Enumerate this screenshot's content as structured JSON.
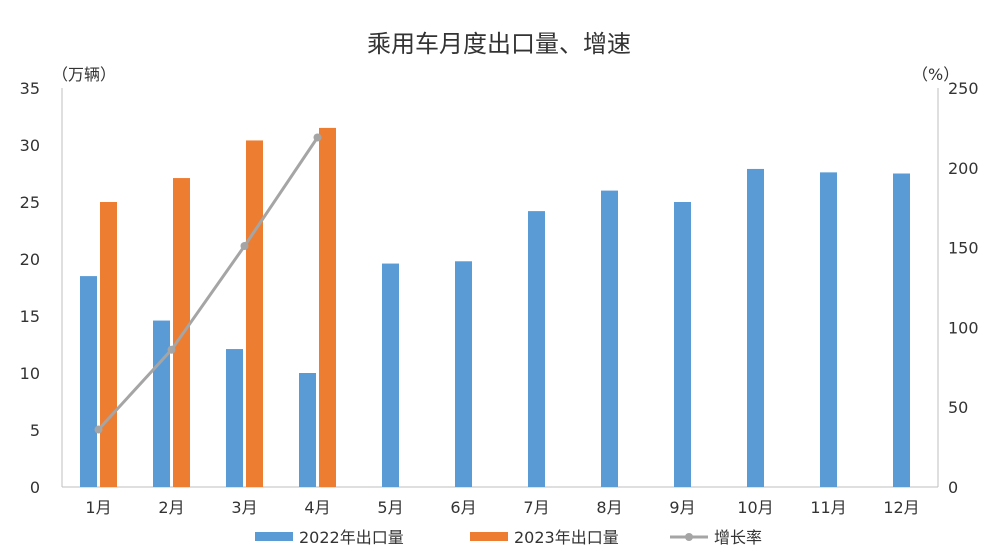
{
  "chart_data": {
    "type": "bar",
    "title": "乘用车月度出口量、增速",
    "left_unit": "（万辆）",
    "right_unit": "（%）",
    "categories": [
      "1月",
      "2月",
      "3月",
      "4月",
      "5月",
      "6月",
      "7月",
      "8月",
      "9月",
      "10月",
      "11月",
      "12月"
    ],
    "series": [
      {
        "name": "2022年出口量",
        "type": "bar",
        "axis": "left",
        "color": "#5B9BD5",
        "values": [
          18.5,
          14.6,
          12.1,
          10.0,
          19.6,
          19.8,
          24.2,
          26.0,
          25.0,
          27.9,
          27.6,
          27.5
        ]
      },
      {
        "name": "2023年出口量",
        "type": "bar",
        "axis": "left",
        "color": "#ED7D31",
        "values": [
          25.0,
          27.1,
          30.4,
          31.5,
          null,
          null,
          null,
          null,
          null,
          null,
          null,
          null
        ]
      },
      {
        "name": "增长率",
        "type": "line",
        "axis": "right",
        "color": "#A5A5A5",
        "values": [
          36,
          86,
          151,
          219,
          null,
          null,
          null,
          null,
          null,
          null,
          null,
          null
        ]
      }
    ],
    "ylim": [
      0,
      35
    ],
    "yticks": [
      0,
      5,
      10,
      15,
      20,
      25,
      30,
      35
    ],
    "y2lim": [
      0,
      250
    ],
    "y2ticks": [
      0,
      50,
      100,
      150,
      200,
      250
    ],
    "grid": false,
    "legend_position": "bottom"
  }
}
